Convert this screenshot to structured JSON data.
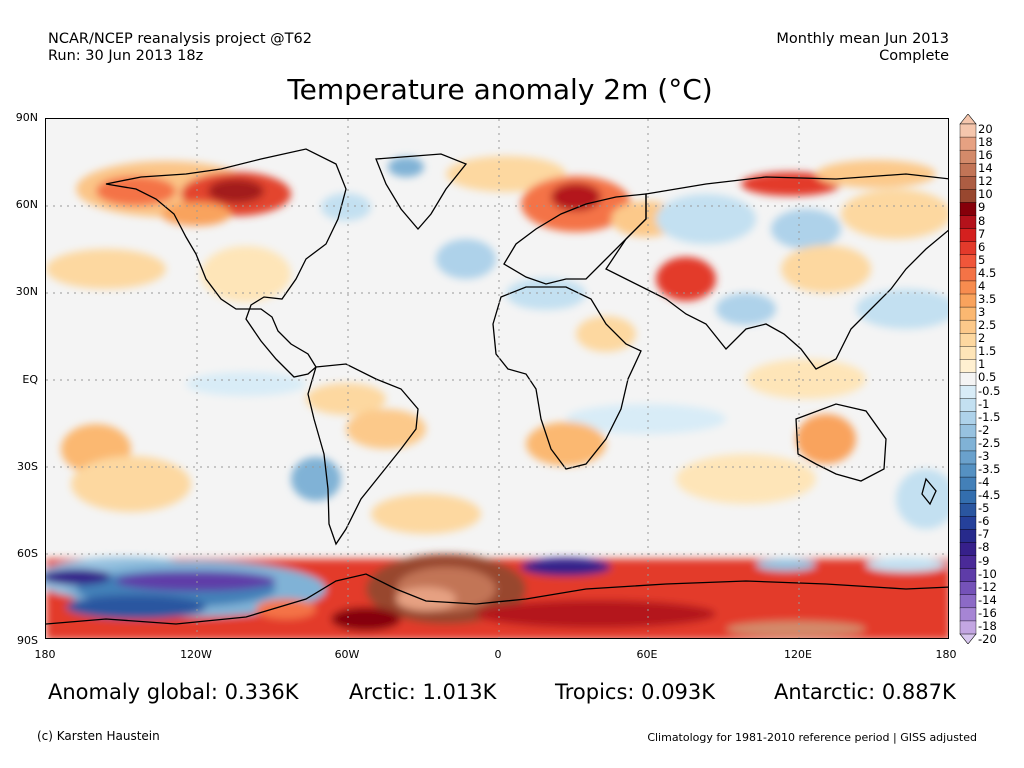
{
  "header": {
    "left_line1": "NCAR/NCEP reanalysis project @T62",
    "left_line2": "Run: 30 Jun 2013 18z",
    "right_line1": "Monthly mean Jun 2013",
    "right_line2": "Complete"
  },
  "title": "Temperature anomaly 2m (°C)",
  "axes": {
    "y_labels": [
      "90N",
      "60N",
      "30N",
      "EQ",
      "30S",
      "60S",
      "90S"
    ],
    "x_labels": [
      "180",
      "120W",
      "60W",
      "0",
      "60E",
      "120E",
      "180"
    ]
  },
  "colorbar": {
    "labels": [
      "20",
      "18",
      "16",
      "14",
      "12",
      "10",
      "9",
      "8",
      "7",
      "6",
      "5",
      "4.5",
      "4",
      "3.5",
      "3",
      "2.5",
      "2",
      "1.5",
      "1",
      "0.5",
      "-0.5",
      "-1",
      "-1.5",
      "-2",
      "-2.5",
      "-3",
      "-3.5",
      "-4",
      "-4.5",
      "-5",
      "-6",
      "-7",
      "-8",
      "-9",
      "-10",
      "-12",
      "-14",
      "-16",
      "-18",
      "-20"
    ],
    "colors": [
      "#f5c6ad",
      "#e6a182",
      "#d38a6a",
      "#c27456",
      "#ad5d43",
      "#98472f",
      "#86000a",
      "#b4121b",
      "#d4201f",
      "#e33a2b",
      "#f0563a",
      "#f47346",
      "#f78c4f",
      "#f9a35d",
      "#fbb871",
      "#fcc98a",
      "#fdd8a0",
      "#fee5b8",
      "#fff0d1",
      "#f4f4f4",
      "#d8ecf7",
      "#c3e0f1",
      "#aed2ea",
      "#97c2e0",
      "#80b2d6",
      "#6aa1cc",
      "#5591c2",
      "#4380b8",
      "#336eae",
      "#2a56a0",
      "#25409a",
      "#272a8c",
      "#36208a",
      "#4a2a98",
      "#5e3ca8",
      "#7552b8",
      "#8c6ac6",
      "#a685d4",
      "#c3a6e2"
    ]
  },
  "stats": {
    "global": "Anomaly global: 0.336K",
    "arctic": "Arctic: 1.013K",
    "tropics": "Tropics: 0.093K",
    "antarctic": "Antarctic: 0.887K"
  },
  "footer": {
    "credit": "(c) Karsten Haustein",
    "note": "Climatology for 1981-2010 reference period | GISS adjusted"
  }
}
